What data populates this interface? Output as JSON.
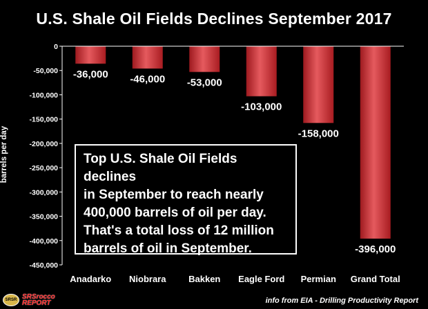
{
  "title": "U.S. Shale Oil Fields Declines September 2017",
  "annotation_lines": [
    "Top U.S. Shale Oil Fields declines",
    "in September to reach nearly",
    "400,000 barrels of oil per day.",
    "That's a total loss of 12 million",
    "barrels of oil in September."
  ],
  "logo": {
    "badge": "SRSR",
    "line1": "SRSrocco",
    "line2": "REPORT"
  },
  "source": "info from EIA - Drilling Productivity Report",
  "colors": {
    "bar": "#c8262b",
    "bar_highlight": "#e55a5e",
    "background": "#000000",
    "text": "#ffffff"
  },
  "chart_data": {
    "type": "bar",
    "title": "U.S. Shale Oil Fields Declines September 2017",
    "xlabel": "",
    "ylabel": "barrels per day",
    "categories": [
      "Anadarko",
      "Niobrara",
      "Bakken",
      "Eagle Ford",
      "Permian",
      "Grand Total"
    ],
    "values": [
      -36000,
      -46000,
      -53000,
      -103000,
      -158000,
      -396000
    ],
    "data_labels": [
      "-36,000",
      "-46,000",
      "-53,000",
      "-103,000",
      "-158,000",
      "-396,000"
    ],
    "ylim": [
      -450000,
      0
    ],
    "yticks": [
      0,
      -50000,
      -100000,
      -150000,
      -200000,
      -250000,
      -300000,
      -350000,
      -400000,
      -450000
    ],
    "ytick_labels": [
      "0",
      "-50,000",
      "-100,000",
      "-150,000",
      "-200,000",
      "-250,000",
      "-300,000",
      "-350,000",
      "-400,000",
      "-450,000"
    ],
    "grid": false,
    "legend": "none"
  }
}
